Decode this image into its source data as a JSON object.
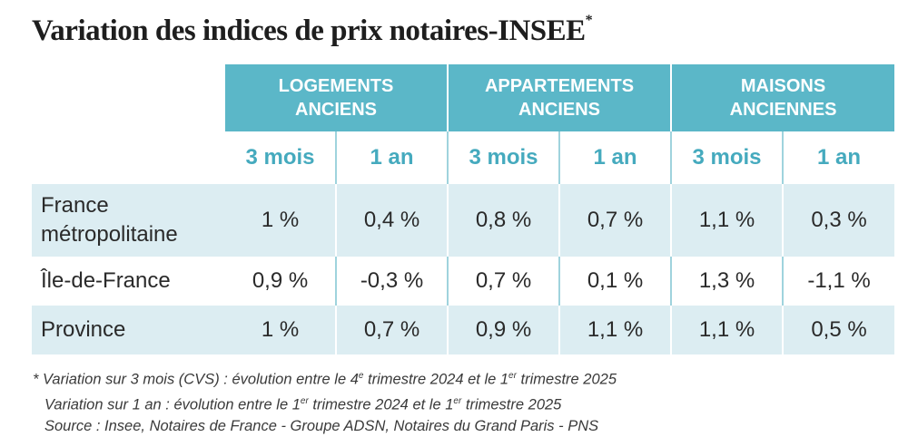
{
  "title": "Variation des indices de prix notaires-INSEE",
  "title_mark": "*",
  "columns": {
    "groups": [
      {
        "line1": "LOGEMENTS",
        "line2": "ANCIENS"
      },
      {
        "line1": "APPARTEMENTS",
        "line2": "ANCIENS"
      },
      {
        "line1": "MAISONS",
        "line2": "ANCIENNES"
      }
    ],
    "periods": [
      "3 mois",
      "1 an",
      "3 mois",
      "1 an",
      "3 mois",
      "1 an"
    ]
  },
  "rows": [
    {
      "label_line1": "France",
      "label_line2": "métropolitaine",
      "values": [
        "1 %",
        "0,4 %",
        "0,8 %",
        "0,7 %",
        "1,1 %",
        "0,3 %"
      ]
    },
    {
      "label_line1": "Île-de-France",
      "label_line2": "",
      "values": [
        "0,9 %",
        "-0,3 %",
        "0,7 %",
        "0,1 %",
        "1,3 %",
        "-1,1 %"
      ]
    },
    {
      "label_line1": "Province",
      "label_line2": "",
      "values": [
        "1 %",
        "0,7 %",
        "0,9 %",
        "1,1 %",
        "1,1 %",
        "0,5 %"
      ]
    }
  ],
  "notes": {
    "mark": "*",
    "line1": {
      "a": "Variation sur 3 mois (CVS) : évolution entre le 4",
      "sup1": "e",
      "b": " trimestre 2024 et le 1",
      "sup2": "er",
      "c": " trimestre 2025"
    },
    "line2": {
      "a": "Variation sur 1 an : évolution entre le 1",
      "sup1": "er",
      "b": " trimestre 2024 et le 1",
      "sup2": "er",
      "c": " trimestre 2025"
    },
    "source": "Source : Insee, Notaires de France - Groupe ADSN, Notaires du Grand Paris - PNS"
  },
  "colors": {
    "header_bg": "#5bb7c8",
    "period_text": "#45aabe",
    "row_shade": "#dcedf2"
  }
}
